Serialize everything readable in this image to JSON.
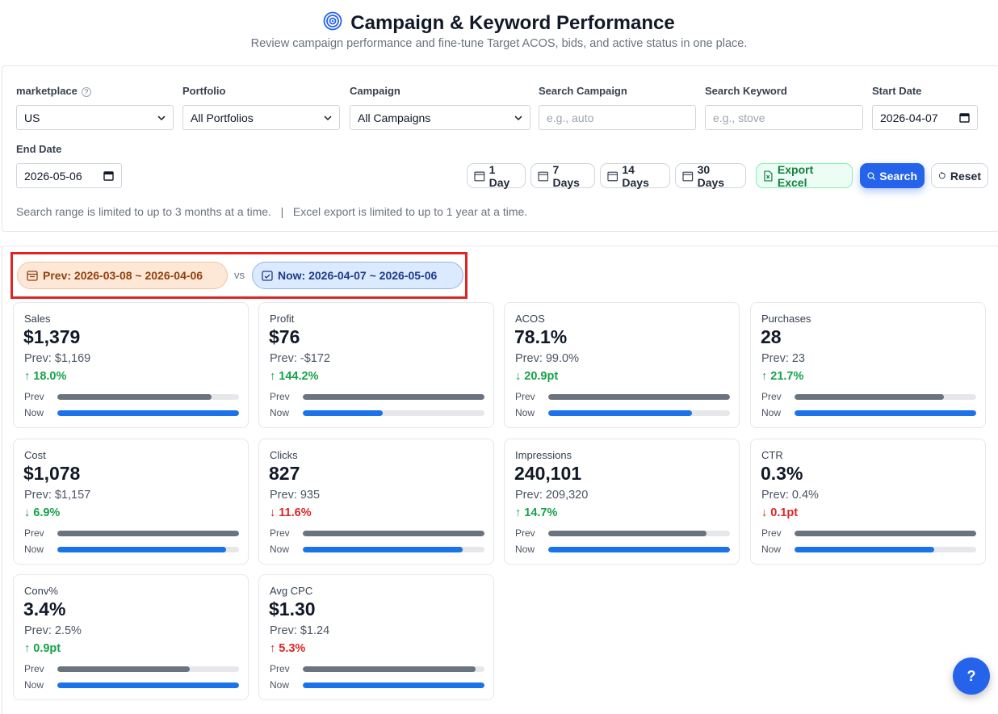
{
  "header": {
    "title": "Campaign & Keyword Performance",
    "subtitle": "Review campaign performance and fine-tune Target ACOS, bids, and active status in one place.",
    "icon": "target-icon"
  },
  "filters": {
    "marketplace": {
      "label": "marketplace",
      "value": "US"
    },
    "portfolio": {
      "label": "Portfolio",
      "value": "All Portfolios"
    },
    "campaign": {
      "label": "Campaign",
      "value": "All Campaigns"
    },
    "search_campaign": {
      "label": "Search Campaign",
      "placeholder": "e.g., auto"
    },
    "search_keyword": {
      "label": "Search Keyword",
      "placeholder": "e.g., stove"
    },
    "start_date": {
      "label": "Start Date",
      "value": "2026-04-07"
    },
    "end_date": {
      "label": "End Date",
      "value": "2026-05-06"
    }
  },
  "buttons": {
    "day1": "1 Day",
    "day7": "7 Days",
    "day14": "14 Days",
    "day30": "30 Days",
    "export": "Export Excel",
    "search": "Search",
    "reset": "Reset"
  },
  "note": "Search range is limited to up to 3 months at a time.   |   Excel export is limited to up to 1 year at a time.",
  "range": {
    "prev": "Prev: 2026-03-08 ~ 2026-04-06",
    "vs": "vs",
    "now": "Now: 2026-04-07 ~ 2026-05-06"
  },
  "bar_labels": {
    "prev": "Prev",
    "now": "Now"
  },
  "colors": {
    "accent": "#2563eb",
    "positive": "#16a34a",
    "negative": "#dc2626",
    "prev_bar": "#6b7280",
    "now_bar": "#1a73e8"
  },
  "metrics": [
    {
      "label": "Sales",
      "value": "$1,379",
      "prev": "Prev: $1,169",
      "delta": "↑ 18.0%",
      "trend": "green",
      "prev_level": 0.85,
      "now_level": 1.0
    },
    {
      "label": "Profit",
      "value": "$76",
      "prev": "Prev: -$172",
      "delta": "↑ 144.2%",
      "trend": "green",
      "prev_level": 1.0,
      "now_level": 0.44
    },
    {
      "label": "ACOS",
      "value": "78.1%",
      "prev": "Prev: 99.0%",
      "delta": "↓ 20.9pt",
      "trend": "green",
      "prev_level": 1.0,
      "now_level": 0.79
    },
    {
      "label": "Purchases",
      "value": "28",
      "prev": "Prev: 23",
      "delta": "↑ 21.7%",
      "trend": "green",
      "prev_level": 0.82,
      "now_level": 1.0
    },
    {
      "label": "Cost",
      "value": "$1,078",
      "prev": "Prev: $1,157",
      "delta": "↓ 6.9%",
      "trend": "green",
      "prev_level": 1.0,
      "now_level": 0.93
    },
    {
      "label": "Clicks",
      "value": "827",
      "prev": "Prev: 935",
      "delta": "↓ 11.6%",
      "trend": "red",
      "prev_level": 1.0,
      "now_level": 0.88
    },
    {
      "label": "Impressions",
      "value": "240,101",
      "prev": "Prev: 209,320",
      "delta": "↑ 14.7%",
      "trend": "green",
      "prev_level": 0.87,
      "now_level": 1.0
    },
    {
      "label": "CTR",
      "value": "0.3%",
      "prev": "Prev: 0.4%",
      "delta": "↓ 0.1pt",
      "trend": "red",
      "prev_level": 1.0,
      "now_level": 0.77
    },
    {
      "label": "Conv%",
      "value": "3.4%",
      "prev": "Prev: 2.5%",
      "delta": "↑ 0.9pt",
      "trend": "green",
      "prev_level": 0.73,
      "now_level": 1.0
    },
    {
      "label": "Avg CPC",
      "value": "$1.30",
      "prev": "Prev: $1.24",
      "delta": "↑ 5.3%",
      "trend": "red",
      "prev_level": 0.95,
      "now_level": 1.0
    }
  ]
}
